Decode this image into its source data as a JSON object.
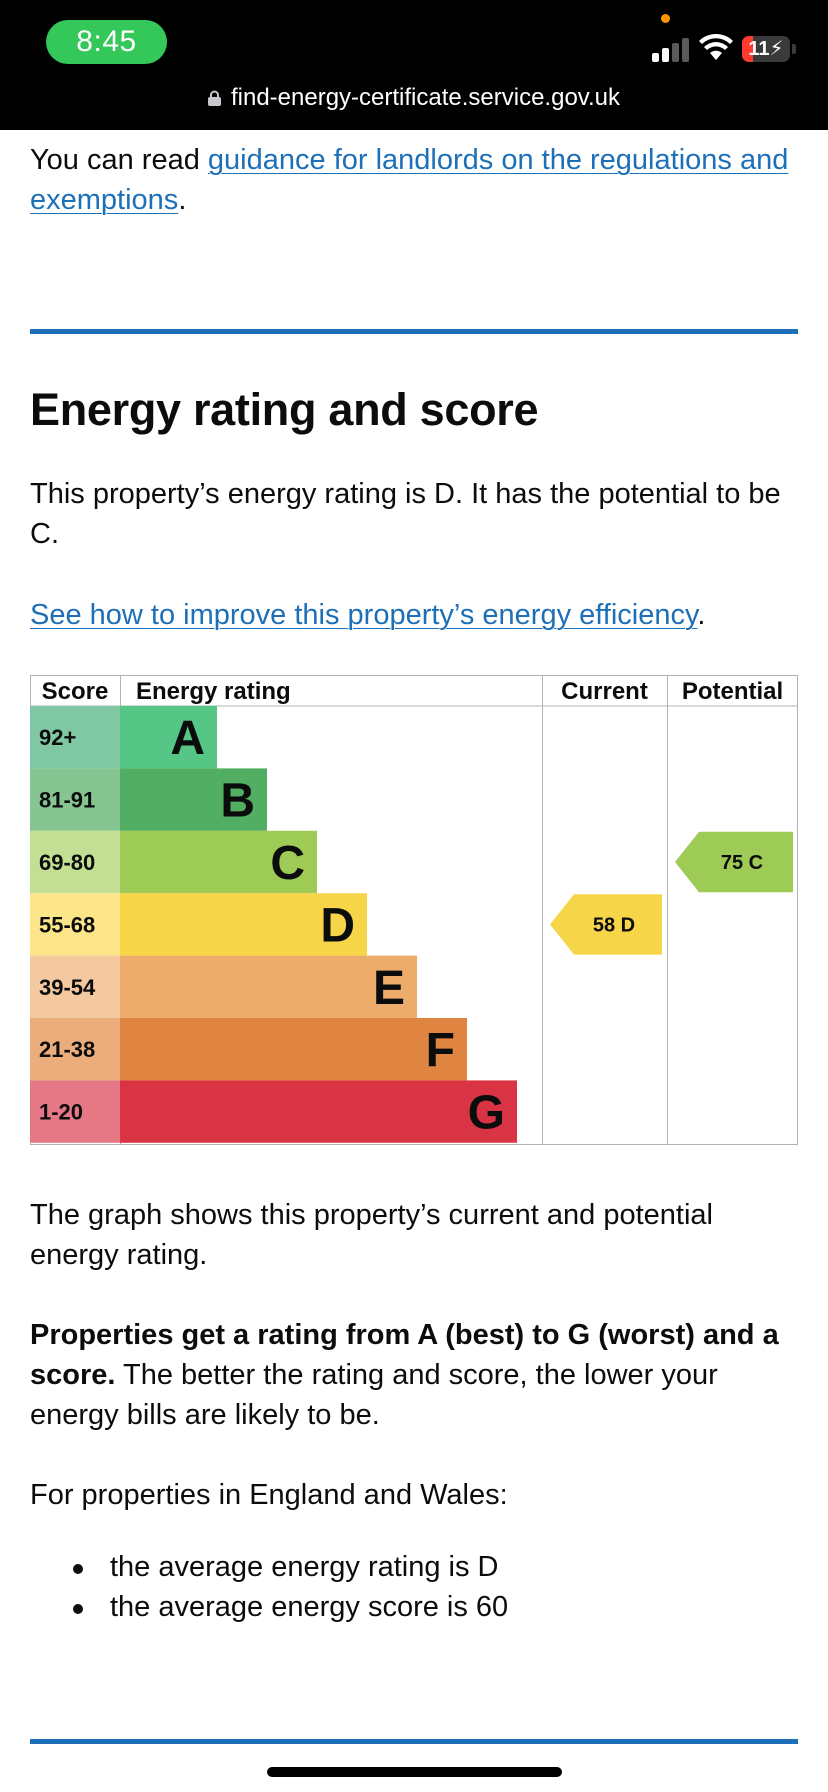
{
  "status_bar": {
    "time": "8:45",
    "battery": "11",
    "url": "find-energy-certificate.service.gov.uk",
    "icons": [
      "signal-icon",
      "wifi-icon",
      "battery-charging-icon",
      "lock-icon"
    ]
  },
  "intro": {
    "prefix": "You can read ",
    "link": "guidance for landlords on the regulations and exemptions",
    "suffix": "."
  },
  "section": {
    "title": "Energy rating and score",
    "summary": "This property’s energy rating is D. It has the potential to be C.",
    "improve_link": "See how to improve this property’s energy efficiency",
    "improve_suffix": "."
  },
  "chart_data": {
    "type": "table",
    "headers": {
      "score": "Score",
      "rating": "Energy rating",
      "current": "Current",
      "potential": "Potential"
    },
    "bands": [
      {
        "score": "92+",
        "letter": "A",
        "color": "#55c686",
        "score_bg": "#80c8a4"
      },
      {
        "score": "81-91",
        "letter": "B",
        "color": "#52ae62",
        "score_bg": "#86c592"
      },
      {
        "score": "69-80",
        "letter": "C",
        "color": "#9dcb56",
        "score_bg": "#c2df93"
      },
      {
        "score": "55-68",
        "letter": "D",
        "color": "#f7d549",
        "score_bg": "#fde68a"
      },
      {
        "score": "39-54",
        "letter": "E",
        "color": "#eeac6c",
        "score_bg": "#f5c9a0"
      },
      {
        "score": "21-38",
        "letter": "F",
        "color": "#e08541",
        "score_bg": "#ecad7d"
      },
      {
        "score": "1-20",
        "letter": "G",
        "color": "#d93444",
        "score_bg": "#e67885"
      }
    ],
    "current": {
      "score": 58,
      "letter": "D",
      "color": "#f7d549"
    },
    "potential": {
      "score": 75,
      "letter": "C",
      "color": "#9dcb56"
    }
  },
  "explanation": {
    "graph_text": "The graph shows this property’s current and potential energy rating.",
    "bold_text": "Properties get a rating from A (best) to G (worst) and a score.",
    "rest_text": " The better the rating and score, the lower your energy bills are likely to be.",
    "region_text": "For properties in England and Wales:",
    "bullets": [
      "the average energy rating is D",
      "the average energy score is 60"
    ]
  }
}
